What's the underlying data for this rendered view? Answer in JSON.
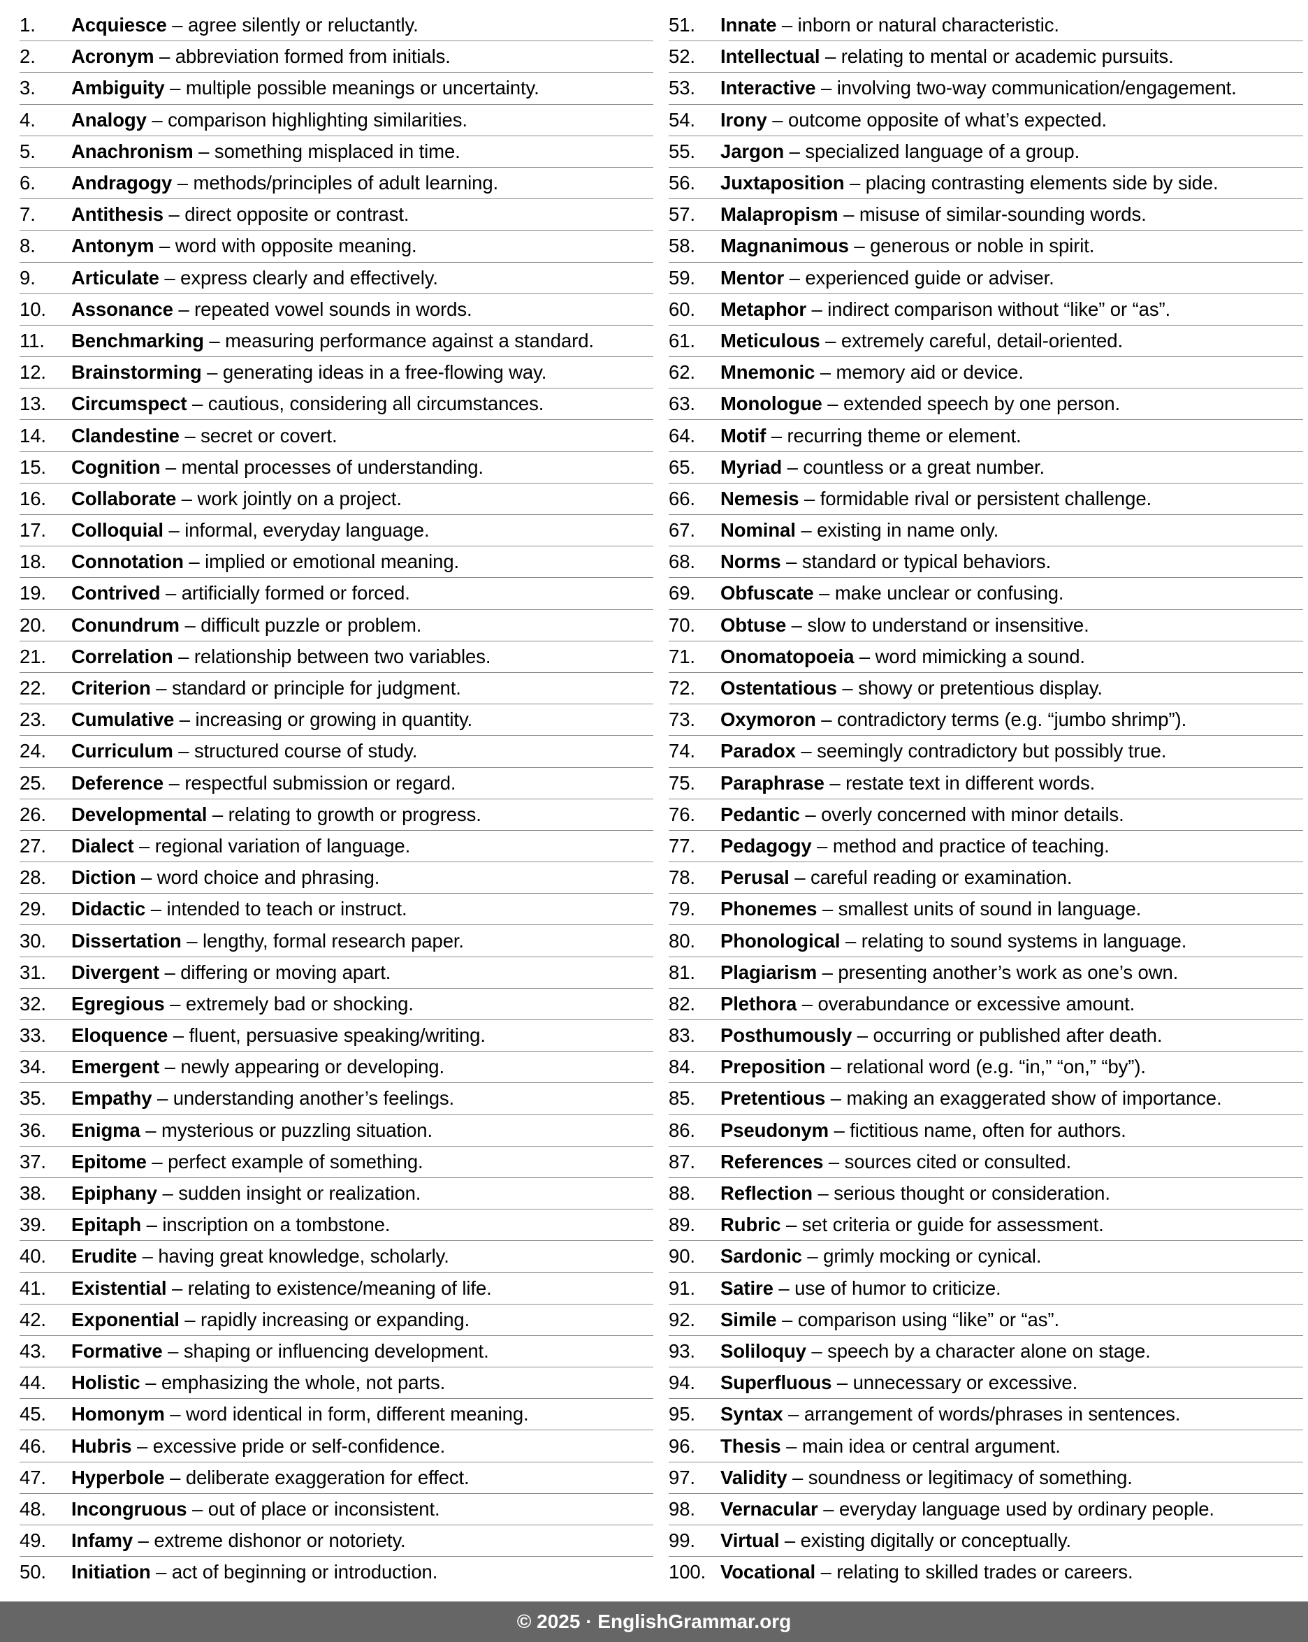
{
  "columns": [
    [
      [
        "1.",
        "Acquiesce",
        "agree silently or reluctantly."
      ],
      [
        "2.",
        "Acronym",
        "abbreviation formed from initials."
      ],
      [
        "3.",
        "Ambiguity",
        "multiple possible meanings or uncertainty."
      ],
      [
        "4.",
        "Analogy",
        "comparison highlighting similarities."
      ],
      [
        "5.",
        "Anachronism",
        "something misplaced in time."
      ],
      [
        "6.",
        "Andragogy",
        "methods/principles of adult learning."
      ],
      [
        "7.",
        "Antithesis",
        "direct opposite or contrast."
      ],
      [
        "8.",
        "Antonym",
        "word with opposite meaning."
      ],
      [
        "9.",
        "Articulate",
        "express clearly and effectively."
      ],
      [
        "10.",
        "Assonance",
        "repeated vowel sounds in words."
      ],
      [
        "11.",
        "Benchmarking",
        "measuring performance against a standard."
      ],
      [
        "12.",
        "Brainstorming",
        "generating ideas in a free-flowing way."
      ],
      [
        "13.",
        "Circumspect",
        "cautious, considering all circumstances."
      ],
      [
        "14.",
        "Clandestine",
        "secret or covert."
      ],
      [
        "15.",
        "Cognition",
        "mental processes of understanding."
      ],
      [
        "16.",
        "Collaborate",
        "work jointly on a project."
      ],
      [
        "17.",
        "Colloquial",
        "informal, everyday language."
      ],
      [
        "18.",
        "Connotation",
        "implied or emotional meaning."
      ],
      [
        "19.",
        "Contrived",
        "artificially formed or forced."
      ],
      [
        "20.",
        "Conundrum",
        "difficult puzzle or problem."
      ],
      [
        "21.",
        "Correlation",
        "relationship between two variables."
      ],
      [
        "22.",
        "Criterion",
        "standard or principle for judgment."
      ],
      [
        "23.",
        "Cumulative",
        "increasing or growing in quantity."
      ],
      [
        "24.",
        "Curriculum",
        "structured course of study."
      ],
      [
        "25.",
        "Deference",
        "respectful submission or regard."
      ],
      [
        "26.",
        "Developmental",
        "relating to growth or progress."
      ],
      [
        "27.",
        "Dialect",
        "regional variation of language."
      ],
      [
        "28.",
        "Diction",
        "word choice and phrasing."
      ],
      [
        "29.",
        "Didactic",
        "intended to teach or instruct."
      ],
      [
        "30.",
        "Dissertation",
        "lengthy, formal research paper."
      ],
      [
        "31.",
        "Divergent",
        "differing or moving apart."
      ],
      [
        "32.",
        "Egregious",
        "extremely bad or shocking."
      ],
      [
        "33.",
        "Eloquence",
        "fluent, persuasive speaking/writing."
      ],
      [
        "34.",
        "Emergent",
        "newly appearing or developing."
      ],
      [
        "35.",
        "Empathy",
        "understanding another’s feelings."
      ],
      [
        "36.",
        "Enigma",
        "mysterious or puzzling situation."
      ],
      [
        "37.",
        "Epitome",
        "perfect example of something."
      ],
      [
        "38.",
        "Epiphany",
        "sudden insight or realization."
      ],
      [
        "39.",
        "Epitaph",
        "inscription on a tombstone."
      ],
      [
        "40.",
        "Erudite",
        "having great knowledge, scholarly."
      ],
      [
        "41.",
        "Existential",
        "relating to existence/meaning of life."
      ],
      [
        "42.",
        "Exponential",
        "rapidly increasing or expanding."
      ],
      [
        "43.",
        "Formative",
        "shaping or influencing development."
      ],
      [
        "44.",
        "Holistic",
        "emphasizing the whole, not parts."
      ],
      [
        "45.",
        "Homonym",
        "word identical in form, different meaning."
      ],
      [
        "46.",
        "Hubris",
        "excessive pride or self-confidence."
      ],
      [
        "47.",
        "Hyperbole",
        "deliberate exaggeration for effect."
      ],
      [
        "48.",
        "Incongruous",
        "out of place or inconsistent."
      ],
      [
        "49.",
        "Infamy",
        "extreme dishonor or notoriety."
      ],
      [
        "50.",
        "Initiation",
        "act of beginning or introduction."
      ]
    ],
    [
      [
        "51.",
        "Innate",
        "inborn or natural characteristic."
      ],
      [
        "52.",
        "Intellectual",
        "relating to mental or academic pursuits."
      ],
      [
        "53.",
        "Interactive",
        "involving two-way communication/engagement."
      ],
      [
        "54.",
        "Irony",
        "outcome opposite of what’s expected."
      ],
      [
        "55.",
        "Jargon",
        "specialized language of a group."
      ],
      [
        "56.",
        "Juxtaposition",
        "placing contrasting elements side by side."
      ],
      [
        "57.",
        "Malapropism",
        "misuse of similar-sounding words."
      ],
      [
        "58.",
        "Magnanimous",
        "generous or noble in spirit."
      ],
      [
        "59.",
        "Mentor",
        "experienced guide or adviser."
      ],
      [
        "60.",
        "Metaphor",
        "indirect comparison without “like” or “as”."
      ],
      [
        "61.",
        "Meticulous",
        "extremely careful, detail-oriented."
      ],
      [
        "62.",
        "Mnemonic",
        "memory aid or device."
      ],
      [
        "63.",
        "Monologue",
        "extended speech by one person."
      ],
      [
        "64.",
        "Motif",
        "recurring theme or element."
      ],
      [
        "65.",
        "Myriad",
        "countless or a great number."
      ],
      [
        "66.",
        "Nemesis",
        "formidable rival or persistent challenge."
      ],
      [
        "67.",
        "Nominal",
        "existing in name only."
      ],
      [
        "68.",
        "Norms",
        "standard or typical behaviors."
      ],
      [
        "69.",
        "Obfuscate",
        "make unclear or confusing."
      ],
      [
        "70.",
        "Obtuse",
        "slow to understand or insensitive."
      ],
      [
        "71.",
        "Onomatopoeia",
        "word mimicking a sound."
      ],
      [
        "72.",
        "Ostentatious",
        "showy or pretentious display."
      ],
      [
        "73.",
        "Oxymoron",
        "contradictory terms (e.g. “jumbo shrimp”)."
      ],
      [
        "74.",
        "Paradox",
        "seemingly contradictory but possibly true."
      ],
      [
        "75.",
        "Paraphrase",
        "restate text in different words."
      ],
      [
        "76.",
        "Pedantic",
        "overly concerned with minor details."
      ],
      [
        "77.",
        "Pedagogy",
        "method and practice of teaching."
      ],
      [
        "78.",
        "Perusal",
        "careful reading or examination."
      ],
      [
        "79.",
        "Phonemes",
        "smallest units of sound in language."
      ],
      [
        "80.",
        "Phonological",
        "relating to sound systems in language."
      ],
      [
        "81.",
        "Plagiarism",
        "presenting another’s work as one’s own."
      ],
      [
        "82.",
        "Plethora",
        "overabundance or excessive amount."
      ],
      [
        "83.",
        "Posthumously",
        "occurring or published after death."
      ],
      [
        "84.",
        "Preposition",
        "relational word (e.g. “in,” “on,” “by”)."
      ],
      [
        "85.",
        "Pretentious",
        "making an exaggerated show of importance."
      ],
      [
        "86.",
        "Pseudonym",
        "fictitious name, often for authors."
      ],
      [
        "87.",
        "References",
        "sources cited or consulted."
      ],
      [
        "88.",
        "Reflection",
        "serious thought or consideration."
      ],
      [
        "89.",
        "Rubric",
        "set criteria or guide for assessment."
      ],
      [
        "90.",
        "Sardonic",
        "grimly mocking or cynical."
      ],
      [
        "91.",
        "Satire",
        "use of humor to criticize."
      ],
      [
        "92.",
        "Simile",
        "comparison using “like” or “as”."
      ],
      [
        "93.",
        "Soliloquy",
        "speech by a character alone on stage."
      ],
      [
        "94.",
        "Superfluous",
        "unnecessary or excessive."
      ],
      [
        "95.",
        "Syntax",
        "arrangement of words/phrases in sentences."
      ],
      [
        "96.",
        "Thesis",
        "main idea or central argument."
      ],
      [
        "97.",
        "Validity",
        "soundness or legitimacy of something."
      ],
      [
        "98.",
        "Vernacular",
        "everyday language used by ordinary people."
      ],
      [
        "99.",
        "Virtual",
        "existing digitally or conceptually."
      ],
      [
        "100.",
        "Vocational",
        "relating to skilled trades or careers."
      ]
    ]
  ],
  "separator": " – ",
  "footer": "© 2025 · EnglishGrammar.org",
  "colors": {
    "footer_bg": "#666666",
    "rule": "#8a8a8a"
  }
}
